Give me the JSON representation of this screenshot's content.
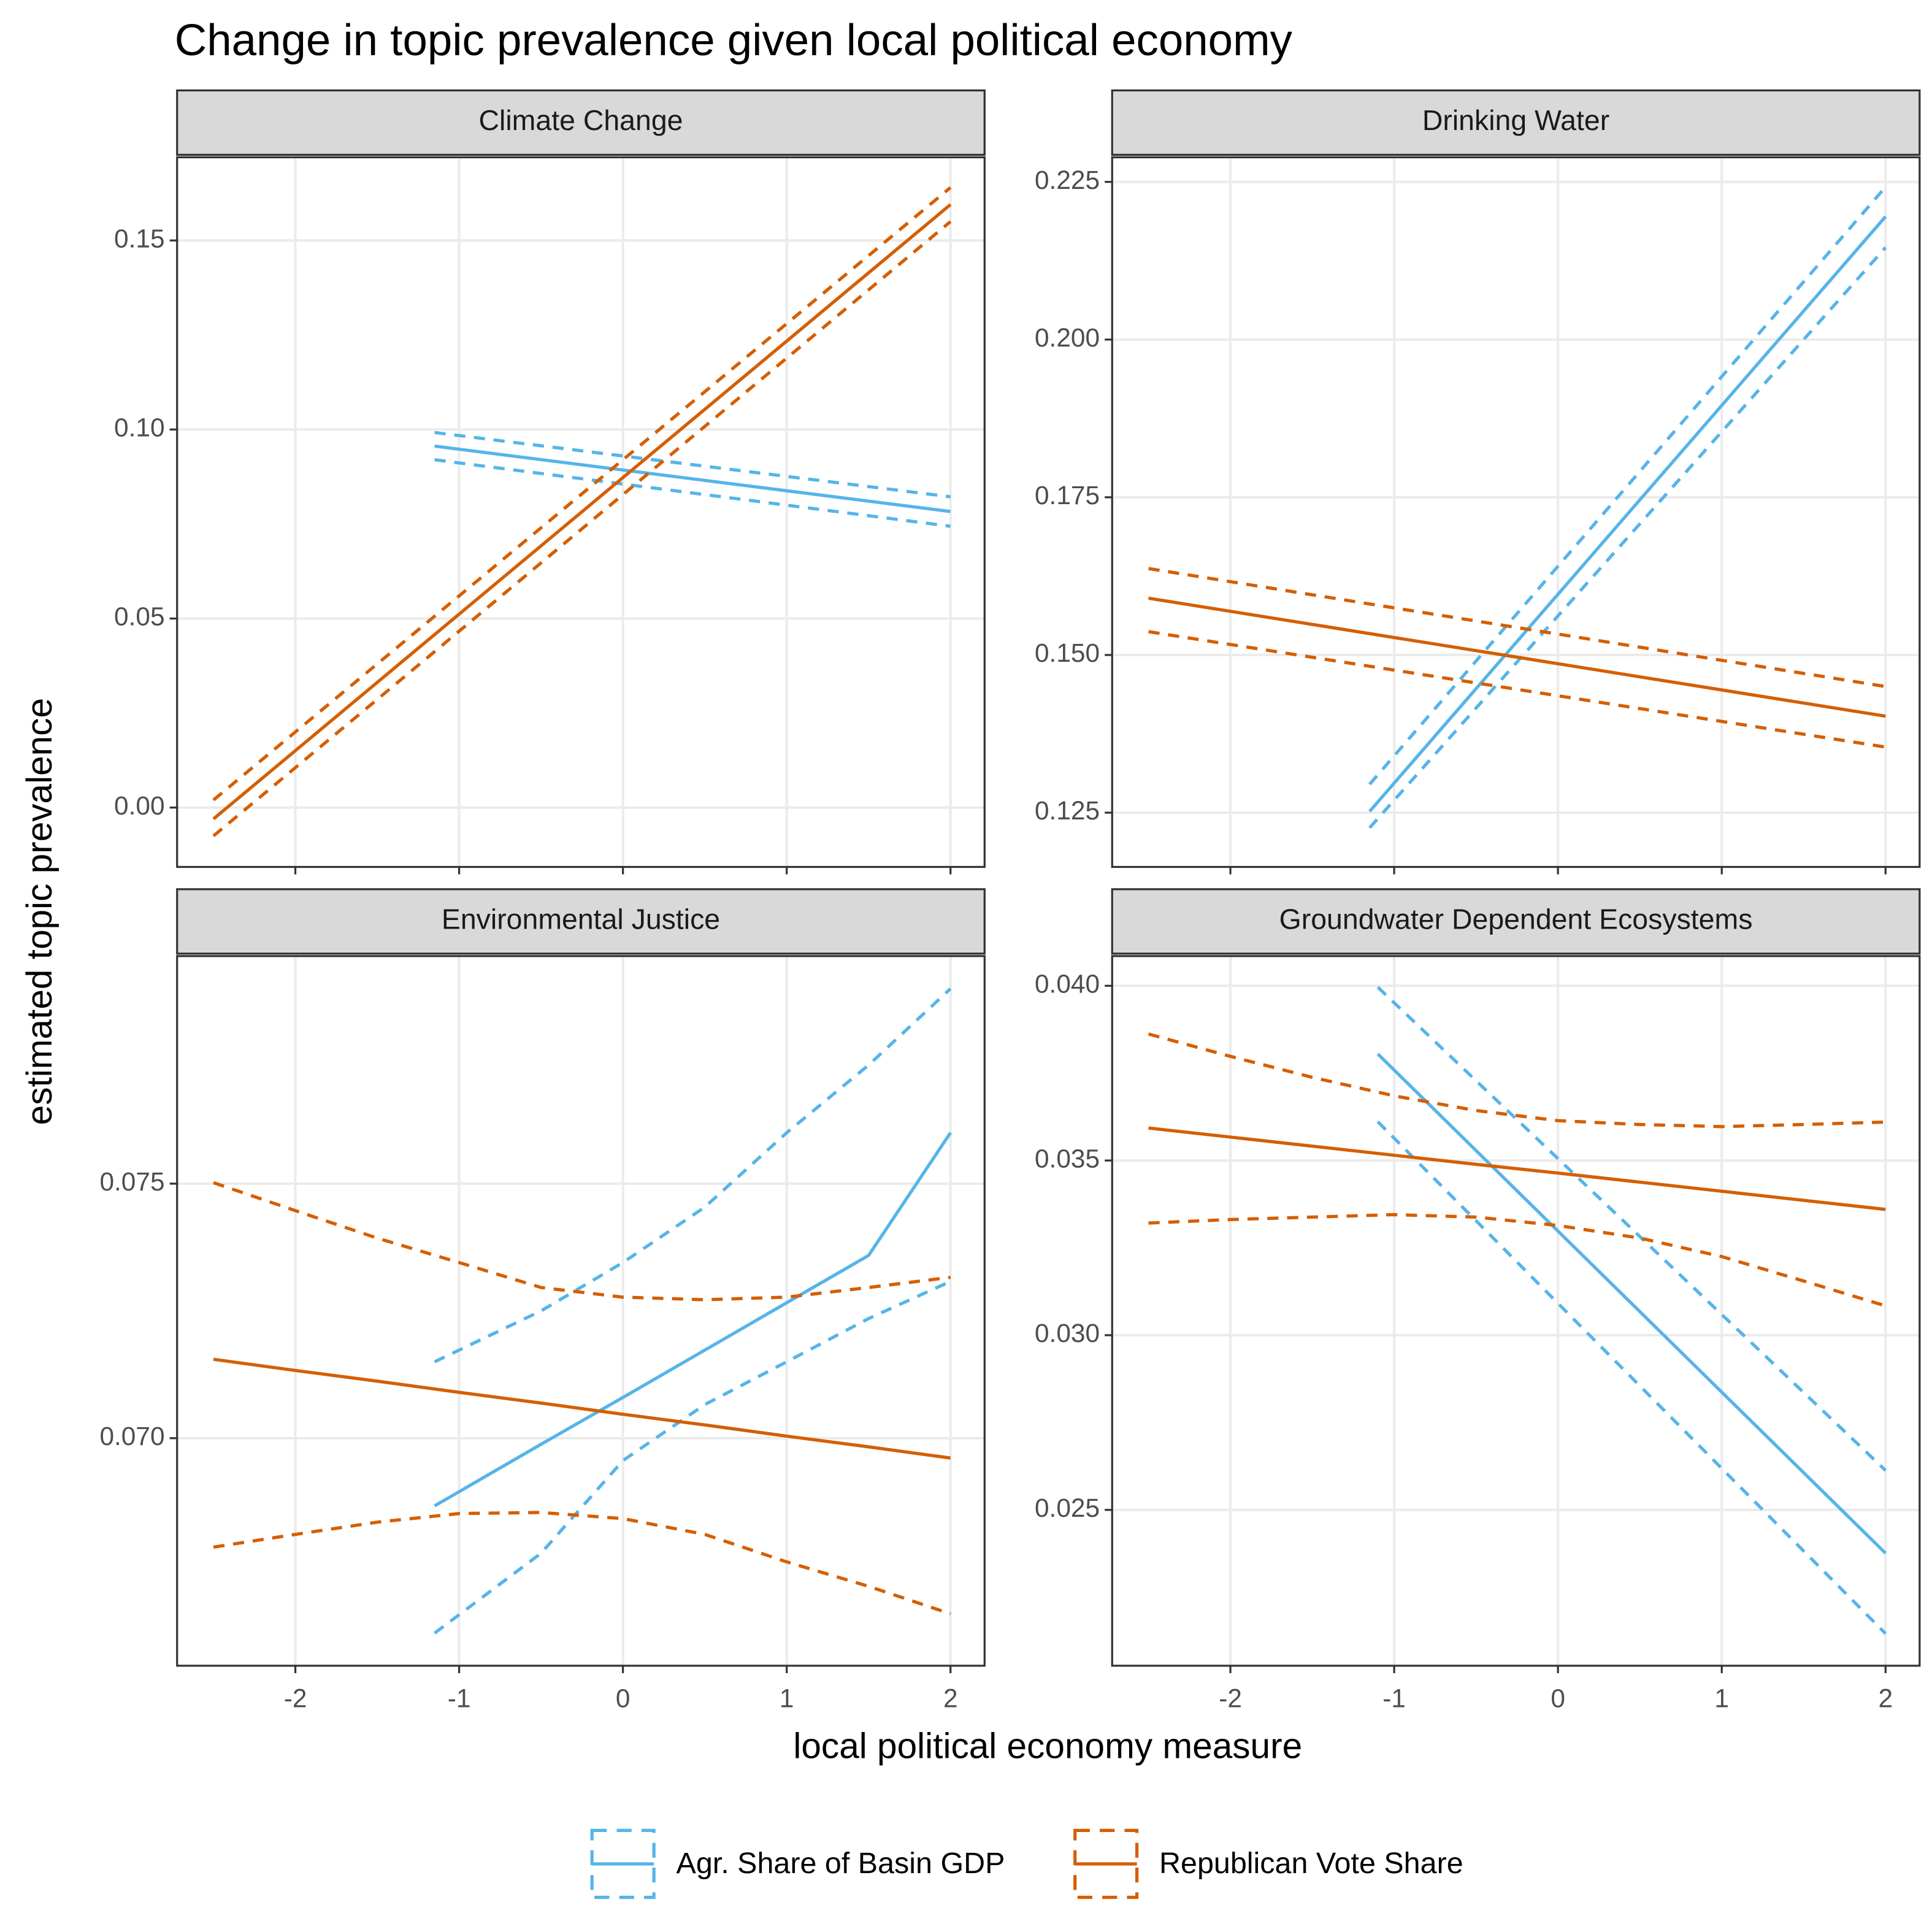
{
  "title": "Change in topic prevalence given local political economy",
  "x_label": "local political economy measure",
  "y_label": "estimated topic prevalence",
  "chart_data": [
    {
      "type": "line",
      "title": "Climate Change",
      "grid": true,
      "xlim": [
        -2.722,
        2.208
      ],
      "xticks": [
        -2,
        -1,
        0,
        1,
        2
      ],
      "ylim": [
        -0.0157,
        0.172
      ],
      "yticks": [
        {
          "value": 0,
          "label": "0.00"
        },
        {
          "value": 0.05,
          "label": "0.05"
        },
        {
          "value": 0.1,
          "label": "0.10"
        },
        {
          "value": 0.15,
          "label": "0.15"
        }
      ],
      "series": [
        {
          "name": "Agr. Share of Basin GDP",
          "color": "#56B4E9",
          "x": [
            -1.15,
            2
          ],
          "values": [
            0.0956,
            0.0783
          ],
          "lower": [
            0.092,
            0.0744
          ],
          "upper": [
            0.0992,
            0.0822
          ]
        },
        {
          "name": "Republican Vote Share",
          "color": "#D55E00",
          "x": [
            -2.5,
            2
          ],
          "values": [
            -0.003,
            0.1595
          ],
          "lower": [
            -0.0075,
            0.155
          ],
          "upper": [
            0.002,
            0.164
          ]
        }
      ]
    },
    {
      "type": "line",
      "title": "Drinking Water",
      "grid": true,
      "xlim": [
        -2.722,
        2.208
      ],
      "xticks": [
        -2,
        -1,
        0,
        1,
        2
      ],
      "ylim": [
        0.1164,
        0.2289
      ],
      "yticks": [
        {
          "value": 0.125,
          "label": "0.125"
        },
        {
          "value": 0.15,
          "label": "0.150"
        },
        {
          "value": 0.175,
          "label": "0.175"
        },
        {
          "value": 0.2,
          "label": "0.200"
        },
        {
          "value": 0.225,
          "label": "0.225"
        }
      ],
      "series": [
        {
          "name": "Agr. Share of Basin GDP",
          "color": "#56B4E9",
          "x": [
            -1.15,
            2
          ],
          "values": [
            0.1252,
            0.2195
          ],
          "lower": [
            0.1226,
            0.2146
          ],
          "upper": [
            0.1295,
            0.2242
          ]
        },
        {
          "name": "Republican Vote Share",
          "color": "#D55E00",
          "x": [
            -2.5,
            2
          ],
          "values": [
            0.159,
            0.1403
          ],
          "lower": [
            0.1537,
            0.1354
          ],
          "upper": [
            0.1637,
            0.145
          ]
        }
      ]
    },
    {
      "type": "line",
      "title": "Environmental Justice",
      "grid": true,
      "xlim": [
        -2.722,
        2.208
      ],
      "xticks": [
        -2,
        -1,
        0,
        1,
        2
      ],
      "ylim": [
        0.06553,
        0.07947
      ],
      "yticks": [
        {
          "value": 0.07,
          "label": "0.070"
        },
        {
          "value": 0.075,
          "label": "0.075"
        }
      ],
      "series": [
        {
          "name": "Agr. Share of Basin GDP",
          "color": "#56B4E9",
          "x": [
            -1.15,
            -0.5,
            0,
            0.5,
            1,
            1.5,
            2
          ],
          "values": [
            0.06867,
            0.06988,
            0.0708,
            0.07173,
            0.07266,
            0.07359,
            0.076
          ],
          "lower": [
            0.06617,
            0.06774,
            0.06956,
            0.07066,
            0.0715,
            0.07235,
            0.07308
          ],
          "upper": [
            0.0715,
            0.0725,
            0.07345,
            0.07454,
            0.076,
            0.07733,
            0.07883
          ]
        },
        {
          "name": "Republican Vote Share",
          "color": "#D55E00",
          "x": [
            -2.5,
            -2,
            -1.5,
            -1,
            -0.5,
            0,
            0.5,
            1,
            1.5,
            2
          ],
          "values": [
            0.07155,
            0.07133,
            0.07112,
            0.0709,
            0.07069,
            0.07047,
            0.07026,
            0.07004,
            0.06983,
            0.06961
          ],
          "lower": [
            0.06786,
            0.06811,
            0.06835,
            0.06852,
            0.06854,
            0.06842,
            0.06811,
            0.06757,
            0.06709,
            0.06655
          ],
          "upper": [
            0.07502,
            0.07447,
            0.07393,
            0.07345,
            0.07296,
            0.07277,
            0.07272,
            0.07277,
            0.07296,
            0.07316
          ]
        }
      ]
    },
    {
      "type": "line",
      "title": "Groundwater Dependent Ecosystems",
      "grid": true,
      "xlim": [
        -2.722,
        2.208
      ],
      "xticks": [
        -2,
        -1,
        0,
        1,
        2
      ],
      "ylim": [
        0.02054,
        0.04085
      ],
      "yticks": [
        {
          "value": 0.025,
          "label": "0.025"
        },
        {
          "value": 0.03,
          "label": "0.030"
        },
        {
          "value": 0.035,
          "label": "0.035"
        },
        {
          "value": 0.04,
          "label": "0.040"
        }
      ],
      "series": [
        {
          "name": "Agr. Share of Basin GDP",
          "color": "#56B4E9",
          "x": [
            -1.1,
            2
          ],
          "values": [
            0.03805,
            0.02376
          ],
          "lower": [
            0.03611,
            0.02146
          ],
          "upper": [
            0.03996,
            0.02613
          ]
        },
        {
          "name": "Republican Vote Share",
          "color": "#D55E00",
          "x": [
            -2.5,
            -2,
            -1.5,
            -1,
            -0.5,
            0,
            0.5,
            1,
            1.5,
            2
          ],
          "values": [
            0.03593,
            0.03567,
            0.03541,
            0.03515,
            0.03489,
            0.03464,
            0.03438,
            0.03412,
            0.03386,
            0.0336
          ],
          "lower": [
            0.03321,
            0.03331,
            0.03338,
            0.03345,
            0.03338,
            0.03314,
            0.03278,
            0.03225,
            0.03155,
            0.03084
          ],
          "upper": [
            0.03862,
            0.03798,
            0.03738,
            0.03685,
            0.03643,
            0.03614,
            0.03603,
            0.03597,
            0.03603,
            0.0361
          ]
        }
      ]
    }
  ]
}
